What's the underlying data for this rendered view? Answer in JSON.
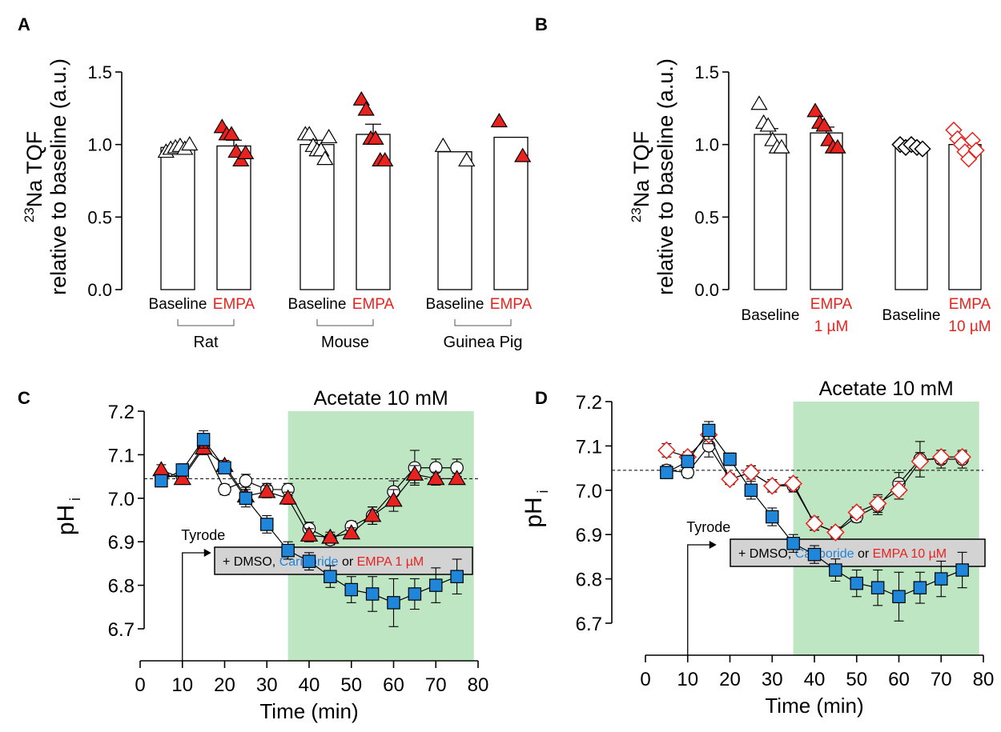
{
  "colors": {
    "empa": "#e8231f",
    "cariporide": "#1f86d9",
    "shade": "#bfe6c3",
    "black": "#000000",
    "box": "#d3d3d3"
  },
  "chart_data": [
    {
      "panel": "A",
      "type": "bar",
      "ylabel_line1": "Na TQF",
      "ylabel_sup": "23",
      "ylabel_line2": "relative to baseline (a.u.)",
      "ylim": [
        0,
        1.5
      ],
      "yticks": [
        "0.0",
        "0.5",
        "1.0",
        "1.5"
      ],
      "groups": [
        {
          "name": "Rat",
          "bars": [
            {
              "label": "Baseline",
              "value": 0.98,
              "sem": 0.0,
              "marker": "open-triangle",
              "points": [
                0.95,
                0.97,
                0.98,
                0.99,
                0.97,
                1.0
              ]
            },
            {
              "label": "EMPA",
              "value": 0.99,
              "sem": 0.04,
              "marker": "red-triangle",
              "points": [
                1.12,
                1.07,
                1.07,
                0.95,
                0.89,
                0.94
              ]
            }
          ]
        },
        {
          "name": "Mouse",
          "bars": [
            {
              "label": "Baseline",
              "value": 1.0,
              "sem": 0.03,
              "marker": "open-triangle",
              "points": [
                1.07,
                1.07,
                0.99,
                0.96,
                0.96,
                0.9,
                1.05
              ]
            },
            {
              "label": "EMPA",
              "value": 1.07,
              "sem": 0.07,
              "marker": "red-triangle",
              "points": [
                1.31,
                1.24,
                1.04,
                1.04,
                0.89,
                0.89
              ]
            }
          ]
        },
        {
          "name": "Guinea Pig",
          "bars": [
            {
              "label": "Baseline",
              "value": 0.95,
              "sem": 0.0,
              "marker": "open-triangle",
              "points": [
                0.99,
                0.89
              ]
            },
            {
              "label": "EMPA",
              "value": 1.05,
              "sem": 0.0,
              "marker": "red-triangle",
              "points": [
                1.16,
                0.92
              ]
            }
          ]
        }
      ]
    },
    {
      "panel": "B",
      "type": "bar",
      "ylabel_line1": "Na TQF",
      "ylabel_sup": "23",
      "ylabel_line2": "relative to baseline (a.u.)",
      "ylim": [
        0,
        1.5
      ],
      "yticks": [
        "0.0",
        "0.5",
        "1.0",
        "1.5"
      ],
      "bars": [
        {
          "label": "Baseline",
          "label2": "",
          "value": 1.07,
          "sem": 0.04,
          "marker": "open-triangle",
          "points": [
            1.28,
            1.15,
            1.13,
            1.03,
            0.98,
            0.98
          ]
        },
        {
          "label": "EMPA",
          "label2": "1 µM",
          "value": 1.08,
          "sem": 0.04,
          "marker": "red-triangle",
          "points": [
            1.23,
            1.15,
            1.13,
            1.03,
            0.98,
            0.98
          ]
        },
        {
          "label": "Baseline",
          "label2": "",
          "value": 0.99,
          "sem": 0.01,
          "marker": "open-diamond",
          "points": [
            1.0,
            0.98,
            1.0,
            0.98,
            0.97
          ]
        },
        {
          "label": "EMPA",
          "label2": "10 µM",
          "value": 1.0,
          "sem": 0.03,
          "marker": "red-open-diamond",
          "points": [
            1.1,
            1.04,
            1.0,
            0.95,
            0.9,
            1.03,
            0.96
          ]
        }
      ]
    },
    {
      "panel": "C",
      "type": "line",
      "xlabel": "Time (min)",
      "ylabel": "pH",
      "ylabel_sub": "i",
      "xlim": [
        0,
        80
      ],
      "ylim": [
        6.7,
        7.2
      ],
      "xticks": [
        "0",
        "10",
        "20",
        "30",
        "40",
        "50",
        "60",
        "70",
        "80"
      ],
      "yticks": [
        "6.7",
        "6.8",
        "6.9",
        "7.0",
        "7.1",
        "7.2"
      ],
      "baseline_y": 7.045,
      "shade_x": [
        35,
        79
      ],
      "shade_label": "Acetate 10 mM",
      "arrow_label": "Tyrode",
      "box_parts": [
        "+ DMSO, ",
        "Cariporide",
        " or ",
        "EMPA 1 µM"
      ],
      "x": [
        5,
        10,
        15,
        20,
        25,
        30,
        35,
        40,
        45,
        50,
        55,
        60,
        65,
        70,
        75
      ],
      "series": [
        {
          "marker": "open-circle",
          "values": [
            7.05,
            7.05,
            7.12,
            7.02,
            7.04,
            7.02,
            7.02,
            6.93,
            6.905,
            6.935,
            6.96,
            7.015,
            7.07,
            7.07,
            7.07
          ],
          "err": [
            0.012,
            0.012,
            0.02,
            0.012,
            0.015,
            0.014,
            0.014,
            0.015,
            0.012,
            0.012,
            0.02,
            0.025,
            0.04,
            0.02,
            0.02
          ]
        },
        {
          "marker": "red-triangle",
          "values": [
            7.065,
            7.045,
            7.115,
            7.075,
            7.005,
            7.015,
            7.0,
            6.915,
            6.91,
            6.92,
            6.96,
            6.995,
            7.055,
            7.045,
            7.045
          ],
          "err": [
            0.012,
            0.012,
            0.015,
            0.012,
            0.015,
            0.014,
            0.014,
            0.015,
            0.012,
            0.012,
            0.02,
            0.025,
            0.02,
            0.015,
            0.012
          ]
        },
        {
          "marker": "blue-square",
          "values": [
            7.04,
            7.065,
            7.135,
            7.07,
            7.0,
            6.94,
            6.88,
            6.855,
            6.82,
            6.79,
            6.78,
            6.76,
            6.78,
            6.8,
            6.82
          ],
          "err": [
            0.012,
            0.014,
            0.02,
            0.014,
            0.02,
            0.02,
            0.02,
            0.02,
            0.025,
            0.03,
            0.04,
            0.055,
            0.035,
            0.04,
            0.04
          ]
        }
      ]
    },
    {
      "panel": "D",
      "type": "line",
      "xlabel": "Time (min)",
      "ylabel": "pH",
      "ylabel_sub": "i",
      "xlim": [
        0,
        80
      ],
      "ylim": [
        6.7,
        7.2
      ],
      "xticks": [
        "0",
        "10",
        "20",
        "30",
        "40",
        "50",
        "60",
        "70",
        "80"
      ],
      "yticks": [
        "6.7",
        "6.8",
        "6.9",
        "7.0",
        "7.1",
        "7.2"
      ],
      "baseline_y": 7.045,
      "shade_x": [
        35,
        79
      ],
      "shade_label": "Acetate 10 mM",
      "arrow_label": "Tyrode",
      "box_parts": [
        "+ DMSO, ",
        "Cariporide",
        " or ",
        "EMPA 10 µM"
      ],
      "x": [
        5,
        10,
        15,
        20,
        25,
        30,
        35,
        40,
        45,
        50,
        55,
        60,
        65,
        70,
        75
      ],
      "series": [
        {
          "marker": "open-circle",
          "values": [
            7.045,
            7.04,
            7.1,
            7.025,
            7.04,
            7.01,
            7.01,
            6.925,
            6.905,
            6.94,
            6.965,
            7.015,
            7.07,
            7.07,
            7.07
          ],
          "err": [
            0.012,
            0.012,
            0.025,
            0.012,
            0.015,
            0.014,
            0.014,
            0.015,
            0.012,
            0.012,
            0.02,
            0.025,
            0.04,
            0.02,
            0.02
          ]
        },
        {
          "marker": "red-open-diamond",
          "values": [
            7.09,
            7.075,
            7.125,
            7.025,
            7.04,
            7.01,
            7.015,
            6.925,
            6.905,
            6.95,
            6.97,
            7.0,
            7.065,
            7.075,
            7.075
          ],
          "err": [
            0.015,
            0.012,
            0.02,
            0.012,
            0.015,
            0.014,
            0.014,
            0.015,
            0.012,
            0.012,
            0.02,
            0.02,
            0.02,
            0.015,
            0.012
          ]
        },
        {
          "marker": "blue-square",
          "values": [
            7.04,
            7.065,
            7.135,
            7.07,
            7.0,
            6.94,
            6.88,
            6.855,
            6.82,
            6.79,
            6.78,
            6.76,
            6.78,
            6.8,
            6.82
          ],
          "err": [
            0.012,
            0.014,
            0.02,
            0.014,
            0.02,
            0.02,
            0.02,
            0.02,
            0.025,
            0.03,
            0.04,
            0.055,
            0.035,
            0.04,
            0.04
          ]
        }
      ]
    }
  ]
}
